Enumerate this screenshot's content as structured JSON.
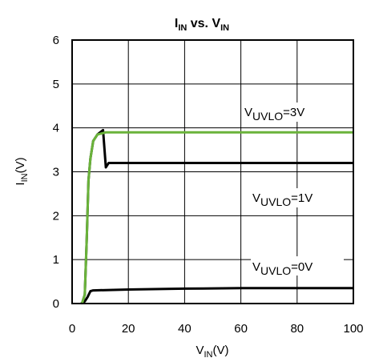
{
  "chart_data": {
    "type": "line",
    "title": {
      "main": "I",
      "main_sub": "IN",
      "mid": " vs. V",
      "mid_sub": "IN"
    },
    "xlabel": {
      "main": "V",
      "sub": "IN",
      "unit": "(V)"
    },
    "ylabel": {
      "main": "I",
      "sub": "IN",
      "unit": "(V)"
    },
    "xlim": [
      0,
      100
    ],
    "ylim": [
      0,
      6
    ],
    "xticks": [
      0,
      20,
      40,
      60,
      80,
      100
    ],
    "yticks": [
      0,
      1,
      2,
      3,
      4,
      5,
      6
    ],
    "grid": true,
    "series": [
      {
        "label": {
          "main": "V",
          "sub": "UVLO",
          "value": "=3V"
        },
        "color": "#6ab33a",
        "x": [
          3.5,
          4.5,
          5.2,
          5.8,
          6.5,
          7.5,
          9,
          11,
          12,
          13,
          14,
          100
        ],
        "y": [
          0,
          0.2,
          1.5,
          2.8,
          3.3,
          3.7,
          3.85,
          3.88,
          3.9,
          3.9,
          3.9,
          3.9
        ]
      },
      {
        "label": {
          "main": "V",
          "sub": "UVLO",
          "value": "=1V"
        },
        "color": "#000000",
        "x": [
          3.5,
          4.5,
          5.2,
          5.8,
          6.5,
          7.5,
          9,
          11,
          12,
          13,
          100
        ],
        "y": [
          0,
          0.2,
          1.5,
          2.8,
          3.3,
          3.7,
          3.85,
          3.95,
          3.1,
          3.2,
          3.2
        ]
      },
      {
        "label": {
          "main": "V",
          "sub": "UVLO",
          "value": "=0V"
        },
        "color": "#000000",
        "x": [
          3.2,
          4.5,
          5.5,
          6.5,
          7.5,
          20,
          40,
          60,
          100
        ],
        "y": [
          0,
          0.05,
          0.15,
          0.28,
          0.3,
          0.32,
          0.34,
          0.35,
          0.35
        ]
      }
    ]
  }
}
